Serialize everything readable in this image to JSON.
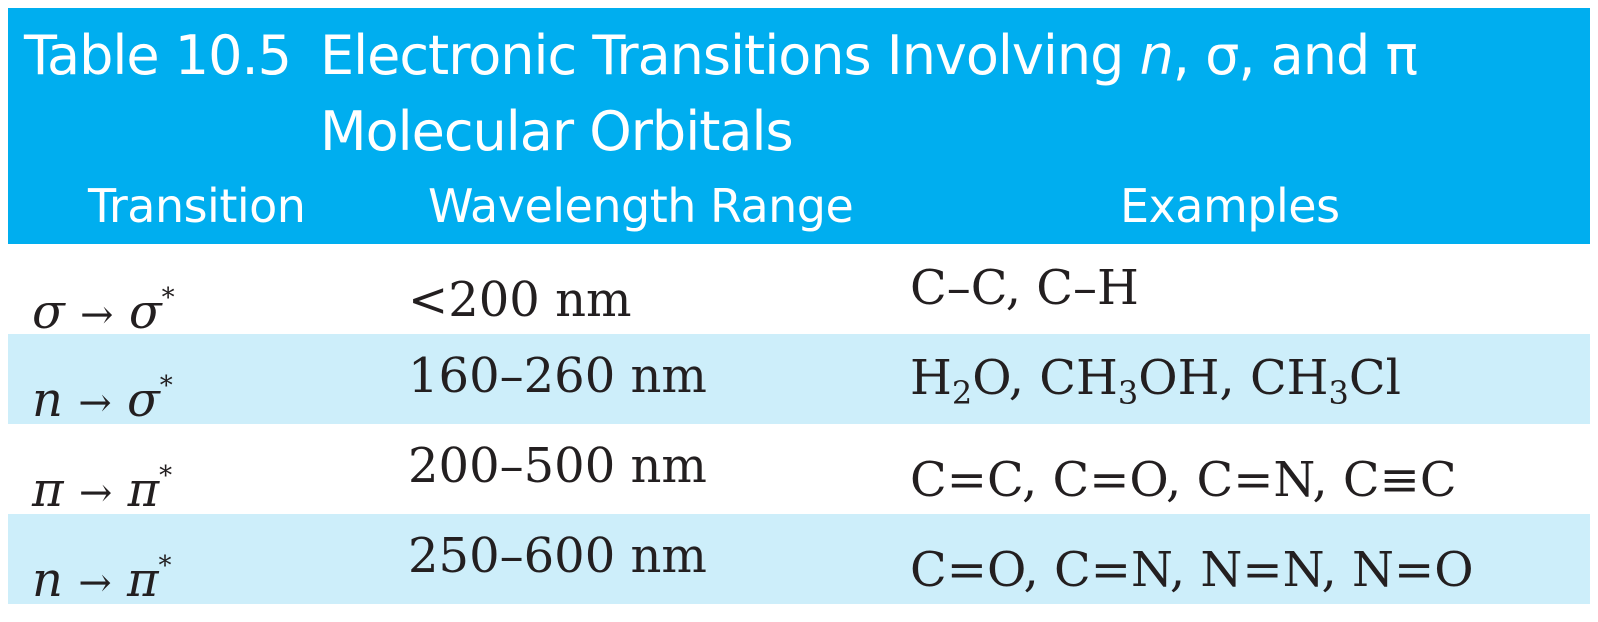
{
  "table": {
    "title_prefix": "Table 10.5",
    "title_part1": "Electronic Transitions Involving ",
    "title_n": "n",
    "title_part2": ", σ, and π",
    "title_line2": "Molecular Orbitals",
    "columns": [
      "Transition",
      "Wavelength Range",
      "Examples"
    ],
    "rows": [
      {
        "from": "σ",
        "arrow": "→",
        "to": "σ",
        "star": "*",
        "wavelength": "<200 nm",
        "examples": [
          "C–C, C–H"
        ]
      },
      {
        "from": "n",
        "arrow": "→",
        "to": "σ",
        "star": "*",
        "wavelength": "160–260 nm",
        "examples": [
          "H",
          "2",
          "O, CH",
          "3",
          "OH, CH",
          "3",
          "Cl"
        ]
      },
      {
        "from": "π",
        "arrow": "→",
        "to": "π",
        "star": "*",
        "wavelength": "200–500 nm",
        "examples": [
          "C=C, C=O, C=N, C≡C"
        ]
      },
      {
        "from": "n",
        "arrow": "→",
        "to": "π",
        "star": "*",
        "wavelength": "250–600 nm",
        "examples": [
          "C=O, C=N, N=N, N=O"
        ]
      }
    ]
  },
  "colors": {
    "header_bg": "#00aeef",
    "shaded_row_bg": "#cdeefa",
    "text": "#231f20"
  }
}
